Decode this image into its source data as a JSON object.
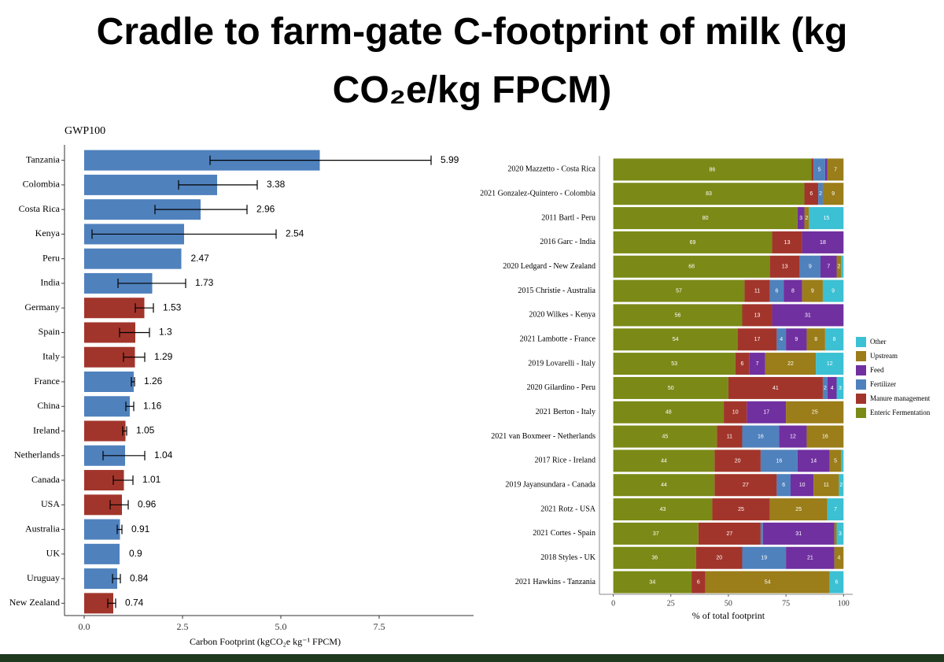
{
  "title": "Cradle to farm-gate C-footprint of milk (kg CO₂e/kg FPCM)",
  "chart_data": [
    {
      "type": "hbar_error",
      "subtitle": "GWP100",
      "xlabel": "Carbon Footprint (kgCO₂e kg⁻¹ FPCM)",
      "categories": [
        "Tanzania",
        "Colombia",
        "Costa Rica",
        "Kenya",
        "Peru",
        "India",
        "Germany",
        "Spain",
        "Italy",
        "France",
        "China",
        "Ireland",
        "Netherlands",
        "Canada",
        "USA",
        "Australia",
        "UK",
        "Uruguay",
        "New Zealand"
      ],
      "values": [
        5.99,
        3.38,
        2.96,
        2.54,
        2.47,
        1.73,
        1.53,
        1.3,
        1.29,
        1.26,
        1.16,
        1.05,
        1.04,
        1.01,
        0.96,
        0.91,
        0.9,
        0.84,
        0.74
      ],
      "errors": [
        [
          3.2,
          8.82
        ],
        [
          2.4,
          4.4
        ],
        [
          1.8,
          4.14
        ],
        [
          0.2,
          4.88
        ],
        null,
        [
          0.86,
          2.58
        ],
        [
          1.3,
          1.76
        ],
        [
          0.9,
          1.66
        ],
        [
          1.0,
          1.54
        ],
        [
          1.2,
          1.28
        ],
        [
          1.06,
          1.26
        ],
        [
          0.98,
          1.08
        ],
        [
          0.48,
          1.54
        ],
        [
          0.74,
          1.24
        ],
        [
          0.66,
          1.12
        ],
        [
          0.84,
          0.96
        ],
        null,
        [
          0.72,
          0.92
        ],
        [
          0.6,
          0.8
        ]
      ],
      "colors": [
        "#4f81bd",
        "#4f81bd",
        "#4f81bd",
        "#4f81bd",
        "#4f81bd",
        "#4f81bd",
        "#a2352b",
        "#a2352b",
        "#a2352b",
        "#4f81bd",
        "#4f81bd",
        "#a2352b",
        "#4f81bd",
        "#a2352b",
        "#a2352b",
        "#4f81bd",
        "#4f81bd",
        "#4f81bd",
        "#a2352b"
      ],
      "xlim": [
        -0.5,
        9.9
      ],
      "xticks": [
        {
          "value": 0,
          "label": "0.0"
        },
        2.5,
        {
          "value": 5,
          "label": "5.0"
        },
        7.5
      ]
    },
    {
      "type": "stacked_hbar",
      "xlabel": "% of total footprint",
      "legend": "right",
      "categories": [
        "2020 Mazzetto - Costa Rica",
        "2021 Gonzalez-Quintero - Colombia",
        "2011 Bartl - Peru",
        "2016 Garc - India",
        "2020 Ledgard - New Zealand",
        "2015 Christie - Australia",
        "2020 Wilkes - Kenya",
        "2021 Lambotte - France",
        "2019 Lovarelli - Italy",
        "2020 Gilardino - Peru",
        "2021 Berton - Italy",
        "2021 van Boxmeer - Netherlands",
        "2017 Rice - Ireland",
        "2019 Jayansundara - Canada",
        "2021 Rotz - USA",
        "2021 Cortes - Spain",
        "2018 Styles - UK",
        "2021 Hawkins - Tanzania"
      ],
      "series": [
        {
          "name": "Enteric Fermentation",
          "color": "#7b8a17",
          "values": [
            86,
            83,
            80,
            69,
            68,
            57,
            56,
            54,
            53,
            50,
            48,
            45,
            44,
            44,
            43,
            37,
            36,
            34
          ]
        },
        {
          "name": "Manure management",
          "color": "#a2352b",
          "values": [
            1,
            6,
            0,
            13,
            13,
            11,
            13,
            17,
            6,
            41,
            10,
            11,
            20,
            27,
            25,
            27,
            20,
            6
          ]
        },
        {
          "name": "Fertilizer",
          "color": "#4f81bd",
          "values": [
            5,
            2,
            0,
            0,
            9,
            6,
            0,
            4,
            0,
            2,
            0,
            16,
            16,
            6,
            0,
            1,
            19,
            0
          ]
        },
        {
          "name": "Feed",
          "color": "#7030a0",
          "values": [
            1,
            0,
            3,
            18,
            7,
            8,
            31,
            9,
            7,
            4,
            17,
            12,
            14,
            10,
            0,
            31,
            21,
            0
          ]
        },
        {
          "name": "Upstream",
          "color": "#9b7d19",
          "values": [
            7,
            9,
            2,
            0,
            2,
            9,
            0,
            8,
            22,
            0,
            25,
            16,
            5,
            11,
            25,
            1,
            4,
            54
          ]
        },
        {
          "name": "Other",
          "color": "#3cc0d3",
          "values": [
            0,
            0,
            15,
            0,
            1,
            9,
            0,
            8,
            12,
            3,
            0,
            0,
            1,
            2,
            7,
            3,
            0,
            6
          ]
        }
      ],
      "xlim": [
        -6,
        104
      ],
      "xticks": [
        0,
        25,
        50,
        75,
        100
      ]
    }
  ]
}
